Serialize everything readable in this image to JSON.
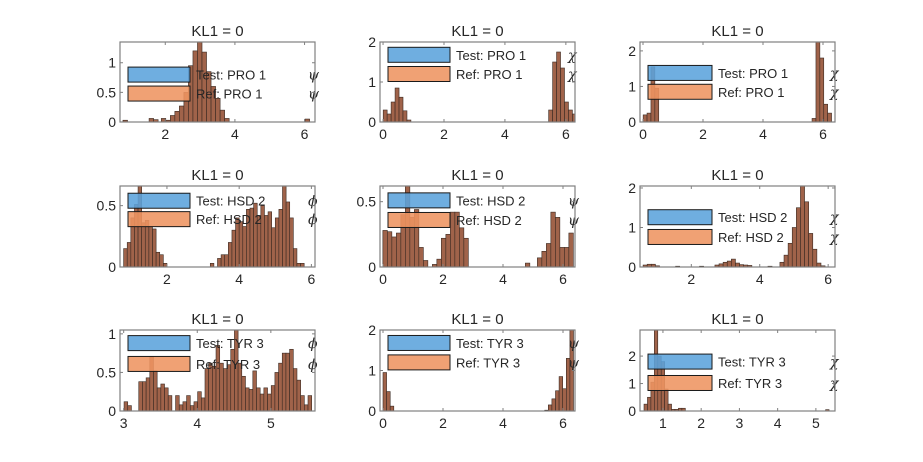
{
  "figure": {
    "background": "#ffffff"
  },
  "colors": {
    "test_fill": "#5ba3dc",
    "ref_fill": "#ee9461",
    "overlap_fill": "#a0634a",
    "bar_edge": "#3a2a22",
    "axis": "#808080",
    "text": "#262626"
  },
  "chart_data": [
    {
      "type": "bar",
      "title": "KL1 = 0",
      "xlim": [
        0.7,
        6.3
      ],
      "ylim": [
        0,
        1.35
      ],
      "xticks": [
        2,
        4,
        6
      ],
      "yticks": [
        0,
        0.5,
        1
      ],
      "ytick_labels": [
        "0",
        "0.5",
        "1"
      ],
      "legend": [
        {
          "label": "Test:  PRO  1",
          "symbol": "ψ",
          "series": "test"
        },
        {
          "label": "Ref:  PRO  1",
          "symbol": "ψ",
          "series": "ref"
        }
      ],
      "legend_y": [
        0.8,
        0.48
      ],
      "bin_width": 0.13,
      "bins": [
        [
          0.85,
          0.03
        ],
        [
          1.6,
          0.06
        ],
        [
          1.73,
          0.04
        ],
        [
          1.95,
          0.06
        ],
        [
          2.08,
          0.03
        ],
        [
          2.21,
          0.11
        ],
        [
          2.34,
          0.18
        ],
        [
          2.47,
          0.27
        ],
        [
          2.6,
          0.5
        ],
        [
          2.73,
          0.95
        ],
        [
          2.86,
          1.2
        ],
        [
          2.99,
          1.35
        ],
        [
          3.12,
          1.18
        ],
        [
          3.25,
          0.85
        ],
        [
          3.38,
          0.6
        ],
        [
          3.51,
          0.4
        ],
        [
          3.64,
          0.2
        ],
        [
          3.77,
          0.06
        ],
        [
          6.08,
          0.05
        ]
      ]
    },
    {
      "type": "bar",
      "title": "KL1 = 0",
      "xlim": [
        -0.1,
        6.3
      ],
      "ylim": [
        0,
        2
      ],
      "xticks": [
        0,
        2,
        4,
        6
      ],
      "yticks": [
        0,
        1,
        2
      ],
      "ytick_labels": [
        "0",
        "1",
        "2"
      ],
      "legend": [
        {
          "label": "Test:  PRO  1",
          "symbol": "χ",
          "series": "test"
        },
        {
          "label": "Ref:  PRO  1",
          "symbol": "χ",
          "series": "ref"
        }
      ],
      "legend_y": [
        1.68,
        1.2
      ],
      "bin_width": 0.13,
      "bins": [
        [
          0.07,
          0.3
        ],
        [
          0.2,
          0.2
        ],
        [
          0.33,
          0.5
        ],
        [
          0.46,
          0.85
        ],
        [
          0.59,
          0.62
        ],
        [
          0.72,
          0.28
        ],
        [
          0.85,
          0.05
        ],
        [
          5.5,
          0.3
        ],
        [
          5.63,
          1.5
        ],
        [
          5.76,
          1.75
        ],
        [
          5.89,
          1.35
        ],
        [
          6.02,
          0.5
        ],
        [
          6.15,
          0.3
        ],
        [
          6.28,
          0.2
        ]
      ]
    },
    {
      "type": "bar",
      "title": "KL1 = 0",
      "xlim": [
        -0.1,
        6.4
      ],
      "ylim": [
        0,
        2.25
      ],
      "xticks": [
        0,
        2,
        4,
        6
      ],
      "yticks": [
        0,
        1,
        2
      ],
      "ytick_labels": [
        "0",
        "1",
        "2"
      ],
      "legend": [
        {
          "label": "Test:  PRO  1",
          "symbol": "χ",
          "series": "test"
        },
        {
          "label": "Ref:  PRO  1",
          "symbol": "χ",
          "series": "ref"
        }
      ],
      "legend_y": [
        1.38,
        0.85
      ],
      "bin_width": 0.13,
      "bins": [
        [
          0.07,
          0.2
        ],
        [
          0.2,
          0.25
        ],
        [
          0.33,
          1.55
        ],
        [
          0.46,
          0.95
        ],
        [
          5.7,
          0.1
        ],
        [
          5.83,
          2.25
        ],
        [
          5.96,
          1.8
        ],
        [
          6.09,
          0.5
        ],
        [
          6.22,
          0.25
        ]
      ]
    },
    {
      "type": "bar",
      "title": "KL1 = 0",
      "xlim": [
        0.7,
        6.1
      ],
      "ylim": [
        0,
        0.66
      ],
      "xticks": [
        2,
        4,
        6
      ],
      "yticks": [
        0,
        0.5
      ],
      "ytick_labels": [
        "0",
        "0.5"
      ],
      "legend": [
        {
          "label": "Test:  HSD  2",
          "symbol": "ϕ",
          "series": "test"
        },
        {
          "label": "Ref:  HSD  2",
          "symbol": "ϕ",
          "series": "ref"
        }
      ],
      "legend_y": [
        0.54,
        0.39
      ],
      "bin_width": 0.1,
      "bins": [
        [
          0.85,
          0.15
        ],
        [
          0.95,
          0.2
        ],
        [
          1.05,
          0.4
        ],
        [
          1.15,
          0.51
        ],
        [
          1.25,
          0.66
        ],
        [
          1.35,
          0.36
        ],
        [
          1.45,
          0.38
        ],
        [
          1.55,
          0.33
        ],
        [
          1.65,
          0.31
        ],
        [
          1.75,
          0.12
        ],
        [
          1.85,
          0.1
        ],
        [
          1.95,
          0.03
        ],
        [
          3.25,
          0.03
        ],
        [
          3.45,
          0.07
        ],
        [
          3.55,
          0.1
        ],
        [
          3.65,
          0.1
        ],
        [
          3.75,
          0.2
        ],
        [
          3.85,
          0.3
        ],
        [
          3.95,
          0.4
        ],
        [
          4.05,
          0.37
        ],
        [
          4.15,
          0.33
        ],
        [
          4.25,
          0.47
        ],
        [
          4.35,
          0.48
        ],
        [
          4.45,
          0.52
        ],
        [
          4.55,
          0.42
        ],
        [
          4.65,
          0.5
        ],
        [
          4.75,
          0.42
        ],
        [
          4.85,
          0.45
        ],
        [
          4.95,
          0.32
        ],
        [
          5.05,
          0.4
        ],
        [
          5.15,
          0.47
        ],
        [
          5.25,
          0.66
        ],
        [
          5.35,
          0.53
        ],
        [
          5.45,
          0.4
        ],
        [
          5.55,
          0.15
        ],
        [
          5.65,
          0.03
        ],
        [
          5.75,
          0.03
        ]
      ]
    },
    {
      "type": "bar",
      "title": "KL1 = 0",
      "xlim": [
        -0.1,
        6.4
      ],
      "ylim": [
        0,
        0.62
      ],
      "xticks": [
        0,
        2,
        4,
        6
      ],
      "yticks": [
        0,
        0.5
      ],
      "ytick_labels": [
        "0",
        "0.5"
      ],
      "legend": [
        {
          "label": "Test:  HSD  2",
          "symbol": "ψ",
          "series": "test"
        },
        {
          "label": "Ref:  HSD  2",
          "symbol": "ψ",
          "series": "ref"
        }
      ],
      "legend_y": [
        0.51,
        0.36
      ],
      "bin_width": 0.15,
      "bins": [
        [
          0.07,
          0.28
        ],
        [
          0.22,
          0.27
        ],
        [
          0.37,
          0.23
        ],
        [
          0.52,
          0.26
        ],
        [
          0.67,
          0.4
        ],
        [
          0.82,
          0.62
        ],
        [
          0.97,
          0.38
        ],
        [
          1.12,
          0.44
        ],
        [
          1.27,
          0.15
        ],
        [
          1.42,
          0.05
        ],
        [
          1.72,
          0.02
        ],
        [
          1.87,
          0.06
        ],
        [
          2.02,
          0.22
        ],
        [
          2.17,
          0.25
        ],
        [
          2.32,
          0.42
        ],
        [
          2.47,
          0.42
        ],
        [
          2.62,
          0.3
        ],
        [
          2.77,
          0.22
        ],
        [
          4.82,
          0.03
        ],
        [
          5.22,
          0.07
        ],
        [
          5.37,
          0.12
        ],
        [
          5.52,
          0.18
        ],
        [
          5.67,
          0.42
        ],
        [
          5.82,
          0.38
        ],
        [
          5.97,
          0.15
        ],
        [
          6.12,
          0.15
        ],
        [
          6.27,
          0.26
        ]
      ]
    },
    {
      "type": "bar",
      "title": "KL1 = 0",
      "xlim": [
        0.5,
        6.2
      ],
      "ylim": [
        0,
        2.05
      ],
      "xticks": [
        2,
        4,
        6
      ],
      "yticks": [
        0,
        1,
        2
      ],
      "ytick_labels": [
        "0",
        "1",
        "2"
      ],
      "legend": [
        {
          "label": "Test:  HSD  2",
          "symbol": "χ",
          "series": "test"
        },
        {
          "label": "Ref:  HSD  2",
          "symbol": "χ",
          "series": "ref"
        }
      ],
      "legend_y": [
        1.26,
        0.76
      ],
      "bin_width": 0.12,
      "bins": [
        [
          0.65,
          0.05
        ],
        [
          0.77,
          0.07
        ],
        [
          0.89,
          0.07
        ],
        [
          1.01,
          0.03
        ],
        [
          1.6,
          0.02
        ],
        [
          2.3,
          0.02
        ],
        [
          2.75,
          0.05
        ],
        [
          2.87,
          0.08
        ],
        [
          2.99,
          0.12
        ],
        [
          3.11,
          0.15
        ],
        [
          3.23,
          0.2
        ],
        [
          3.35,
          0.1
        ],
        [
          3.47,
          0.06
        ],
        [
          3.59,
          0.05
        ],
        [
          3.71,
          0.04
        ],
        [
          4.3,
          0.02
        ],
        [
          4.65,
          0.12
        ],
        [
          4.77,
          0.3
        ],
        [
          4.89,
          0.6
        ],
        [
          5.01,
          1.0
        ],
        [
          5.13,
          1.5
        ],
        [
          5.25,
          2.05
        ],
        [
          5.37,
          1.65
        ],
        [
          5.49,
          0.85
        ],
        [
          5.61,
          0.45
        ],
        [
          5.73,
          0.1
        ],
        [
          5.85,
          0.03
        ]
      ]
    },
    {
      "type": "bar",
      "title": "KL1 = 0",
      "xlim": [
        2.95,
        5.6
      ],
      "ylim": [
        0,
        1.05
      ],
      "xticks": [
        3,
        4,
        5
      ],
      "yticks": [
        0,
        0.5,
        1
      ],
      "ytick_labels": [
        "0",
        "0.5",
        "1"
      ],
      "legend": [
        {
          "label": "Test:  TYR  3",
          "symbol": "ϕ",
          "series": "test"
        },
        {
          "label": "Ref:  TYR  3",
          "symbol": "ϕ",
          "series": "ref"
        }
      ],
      "legend_y": [
        0.88,
        0.61
      ],
      "bin_width": 0.05,
      "bins": [
        [
          3.03,
          0.12
        ],
        [
          3.08,
          0.07
        ],
        [
          3.23,
          0.38
        ],
        [
          3.28,
          0.38
        ],
        [
          3.33,
          0.43
        ],
        [
          3.38,
          0.7
        ],
        [
          3.43,
          0.52
        ],
        [
          3.48,
          0.3
        ],
        [
          3.53,
          0.35
        ],
        [
          3.58,
          0.3
        ],
        [
          3.63,
          0.2
        ],
        [
          3.73,
          0.2
        ],
        [
          3.78,
          0.08
        ],
        [
          3.83,
          0.12
        ],
        [
          3.88,
          0.2
        ],
        [
          3.93,
          0.07
        ],
        [
          3.98,
          0.12
        ],
        [
          4.03,
          0.25
        ],
        [
          4.08,
          0.17
        ],
        [
          4.13,
          0.55
        ],
        [
          4.18,
          0.62
        ],
        [
          4.23,
          0.58
        ],
        [
          4.28,
          0.85
        ],
        [
          4.33,
          0.62
        ],
        [
          4.38,
          0.55
        ],
        [
          4.43,
          0.6
        ],
        [
          4.48,
          0.8
        ],
        [
          4.53,
          1.05
        ],
        [
          4.58,
          0.62
        ],
        [
          4.63,
          0.45
        ],
        [
          4.68,
          0.3
        ],
        [
          4.73,
          0.28
        ],
        [
          4.78,
          0.52
        ],
        [
          4.83,
          0.3
        ],
        [
          4.88,
          0.22
        ],
        [
          4.93,
          0.3
        ],
        [
          4.98,
          0.22
        ],
        [
          5.03,
          0.33
        ],
        [
          5.08,
          0.5
        ],
        [
          5.13,
          0.62
        ],
        [
          5.18,
          0.75
        ],
        [
          5.23,
          0.75
        ],
        [
          5.28,
          0.8
        ],
        [
          5.33,
          0.55
        ],
        [
          5.38,
          0.4
        ],
        [
          5.43,
          0.2
        ],
        [
          5.48,
          0.08
        ],
        [
          5.53,
          0.2
        ]
      ]
    },
    {
      "type": "bar",
      "title": "KL1 = 0",
      "xlim": [
        -0.1,
        6.4
      ],
      "ylim": [
        0,
        2
      ],
      "xticks": [
        0,
        2,
        4,
        6
      ],
      "yticks": [
        0,
        1,
        2
      ],
      "ytick_labels": [
        "0",
        "1",
        "2"
      ],
      "legend": [
        {
          "label": "Test:  TYR  3",
          "symbol": "ψ",
          "series": "test"
        },
        {
          "label": "Ref:  TYR  3",
          "symbol": "ψ",
          "series": "ref"
        }
      ],
      "legend_y": [
        1.68,
        1.2
      ],
      "bin_width": 0.12,
      "bins": [
        [
          0.06,
          0.95
        ],
        [
          0.18,
          0.48
        ],
        [
          0.3,
          0.12
        ],
        [
          5.45,
          0.02
        ],
        [
          5.57,
          0.15
        ],
        [
          5.69,
          0.3
        ],
        [
          5.81,
          0.5
        ],
        [
          5.93,
          0.85
        ],
        [
          6.05,
          0.55
        ],
        [
          6.17,
          1.3
        ],
        [
          6.29,
          2.0
        ]
      ]
    },
    {
      "type": "bar",
      "title": "KL1 = 0",
      "xlim": [
        0.4,
        5.5
      ],
      "ylim": [
        0,
        2.95
      ],
      "xticks": [
        1,
        2,
        3,
        4,
        5
      ],
      "yticks": [
        0,
        1,
        2
      ],
      "ytick_labels": [
        "0",
        "1",
        "2"
      ],
      "legend": [
        {
          "label": "Test:  TYR  3",
          "symbol": "χ",
          "series": "test"
        },
        {
          "label": "Ref:  TYR  3",
          "symbol": "χ",
          "series": "ref"
        }
      ],
      "legend_y": [
        1.8,
        1.02
      ],
      "bin_width": 0.09,
      "bins": [
        [
          0.55,
          0.25
        ],
        [
          0.64,
          0.5
        ],
        [
          0.73,
          1.05
        ],
        [
          0.82,
          2.95
        ],
        [
          0.91,
          2.0
        ],
        [
          1.0,
          1.8
        ],
        [
          1.09,
          0.8
        ],
        [
          1.18,
          0.25
        ],
        [
          1.27,
          0.06
        ],
        [
          1.36,
          0.06
        ],
        [
          1.45,
          0.1
        ],
        [
          1.54,
          0.1
        ],
        [
          5.3,
          0.05
        ]
      ]
    }
  ]
}
